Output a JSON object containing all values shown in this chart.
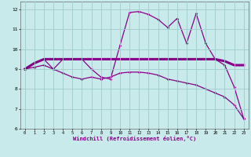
{
  "xlabel": "Windchill (Refroidissement éolien,°C)",
  "background_color": "#c8eaea",
  "grid_color": "#a0cccc",
  "line_color": "#880088",
  "x_ticks": [
    0,
    1,
    2,
    3,
    4,
    5,
    6,
    7,
    8,
    9,
    10,
    11,
    12,
    13,
    14,
    15,
    16,
    17,
    18,
    19,
    20,
    21,
    22,
    23
  ],
  "ylim": [
    6.0,
    12.4
  ],
  "xlim": [
    -0.5,
    23.5
  ],
  "yticks": [
    6,
    7,
    8,
    9,
    10,
    11,
    12
  ],
  "line1_x": [
    0,
    1,
    2,
    3,
    4,
    5,
    6,
    7,
    8,
    9,
    10,
    11,
    12,
    13,
    14,
    15,
    16,
    17,
    18,
    19,
    20,
    21,
    22,
    23
  ],
  "line1_y": [
    9.0,
    9.3,
    9.5,
    9.0,
    9.5,
    9.5,
    9.5,
    9.0,
    8.6,
    8.5,
    10.2,
    11.85,
    11.9,
    11.75,
    11.5,
    11.1,
    11.55,
    10.3,
    11.8,
    10.3,
    9.5,
    9.2,
    8.1,
    6.5
  ],
  "line2_x": [
    0,
    1,
    2,
    3,
    4,
    5,
    6,
    7,
    8,
    9,
    10,
    11,
    12,
    13,
    14,
    15,
    16,
    17,
    18,
    19,
    20,
    21,
    22,
    23
  ],
  "line2_y": [
    9.0,
    9.3,
    9.5,
    9.5,
    9.5,
    9.5,
    9.5,
    9.5,
    9.5,
    9.5,
    9.5,
    9.5,
    9.5,
    9.5,
    9.5,
    9.5,
    9.5,
    9.5,
    9.5,
    9.5,
    9.5,
    9.4,
    9.2,
    9.2
  ],
  "line3_x": [
    0,
    1,
    2,
    3,
    4,
    5,
    6,
    7,
    8,
    9,
    10,
    11,
    12,
    13,
    14,
    15,
    16,
    17,
    18,
    19,
    20,
    21,
    22,
    23
  ],
  "line3_y": [
    9.0,
    9.1,
    9.2,
    9.0,
    8.8,
    8.6,
    8.5,
    8.6,
    8.5,
    8.6,
    8.8,
    8.85,
    8.85,
    8.8,
    8.7,
    8.5,
    8.4,
    8.3,
    8.2,
    8.0,
    7.8,
    7.6,
    7.2,
    6.5
  ]
}
